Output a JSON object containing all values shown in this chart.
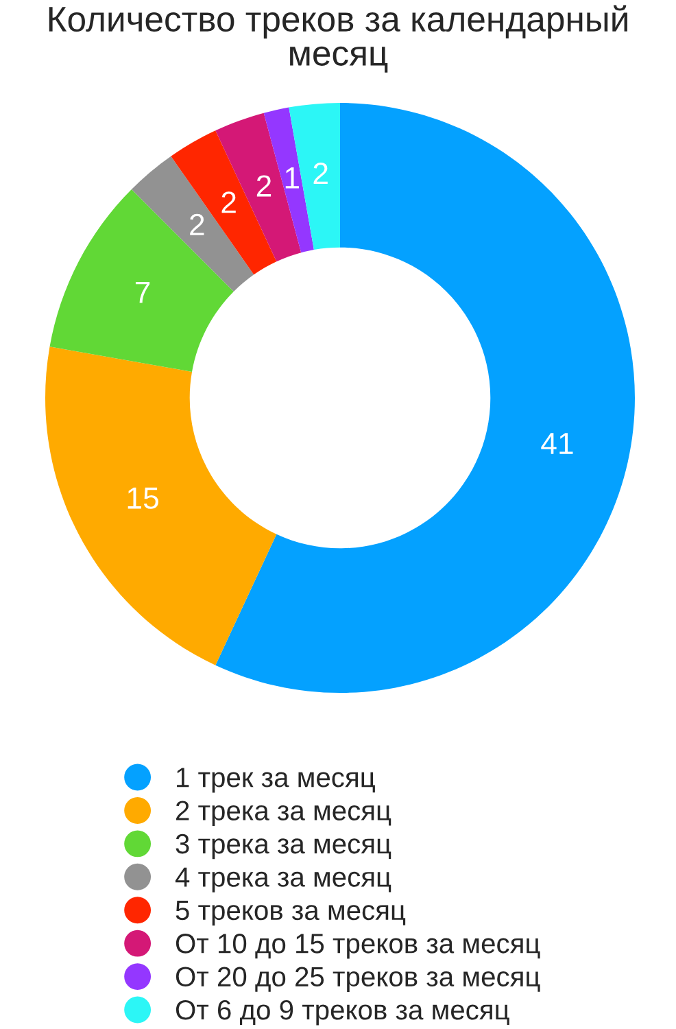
{
  "chart_data": {
    "type": "donut",
    "title": "Количество треков за календарный месяц",
    "categories": [
      "1 трек за месяц",
      "2 трека за месяц",
      "3 трека за месяц",
      "4 трека за месяц",
      "5 треков за месяц",
      "От 10 до 15 треков за месяц",
      "От 20 до 25 треков за месяц",
      "От 6 до 9 треков за месяц"
    ],
    "values": [
      41,
      15,
      7,
      2,
      2,
      2,
      1,
      2
    ],
    "colors": [
      "#04a1ff",
      "#ffaa00",
      "#61d836",
      "#929292",
      "#ff2600",
      "#d41876",
      "#9437ff",
      "#2cf6f6"
    ],
    "data_labels": true,
    "legend": "bottom"
  }
}
